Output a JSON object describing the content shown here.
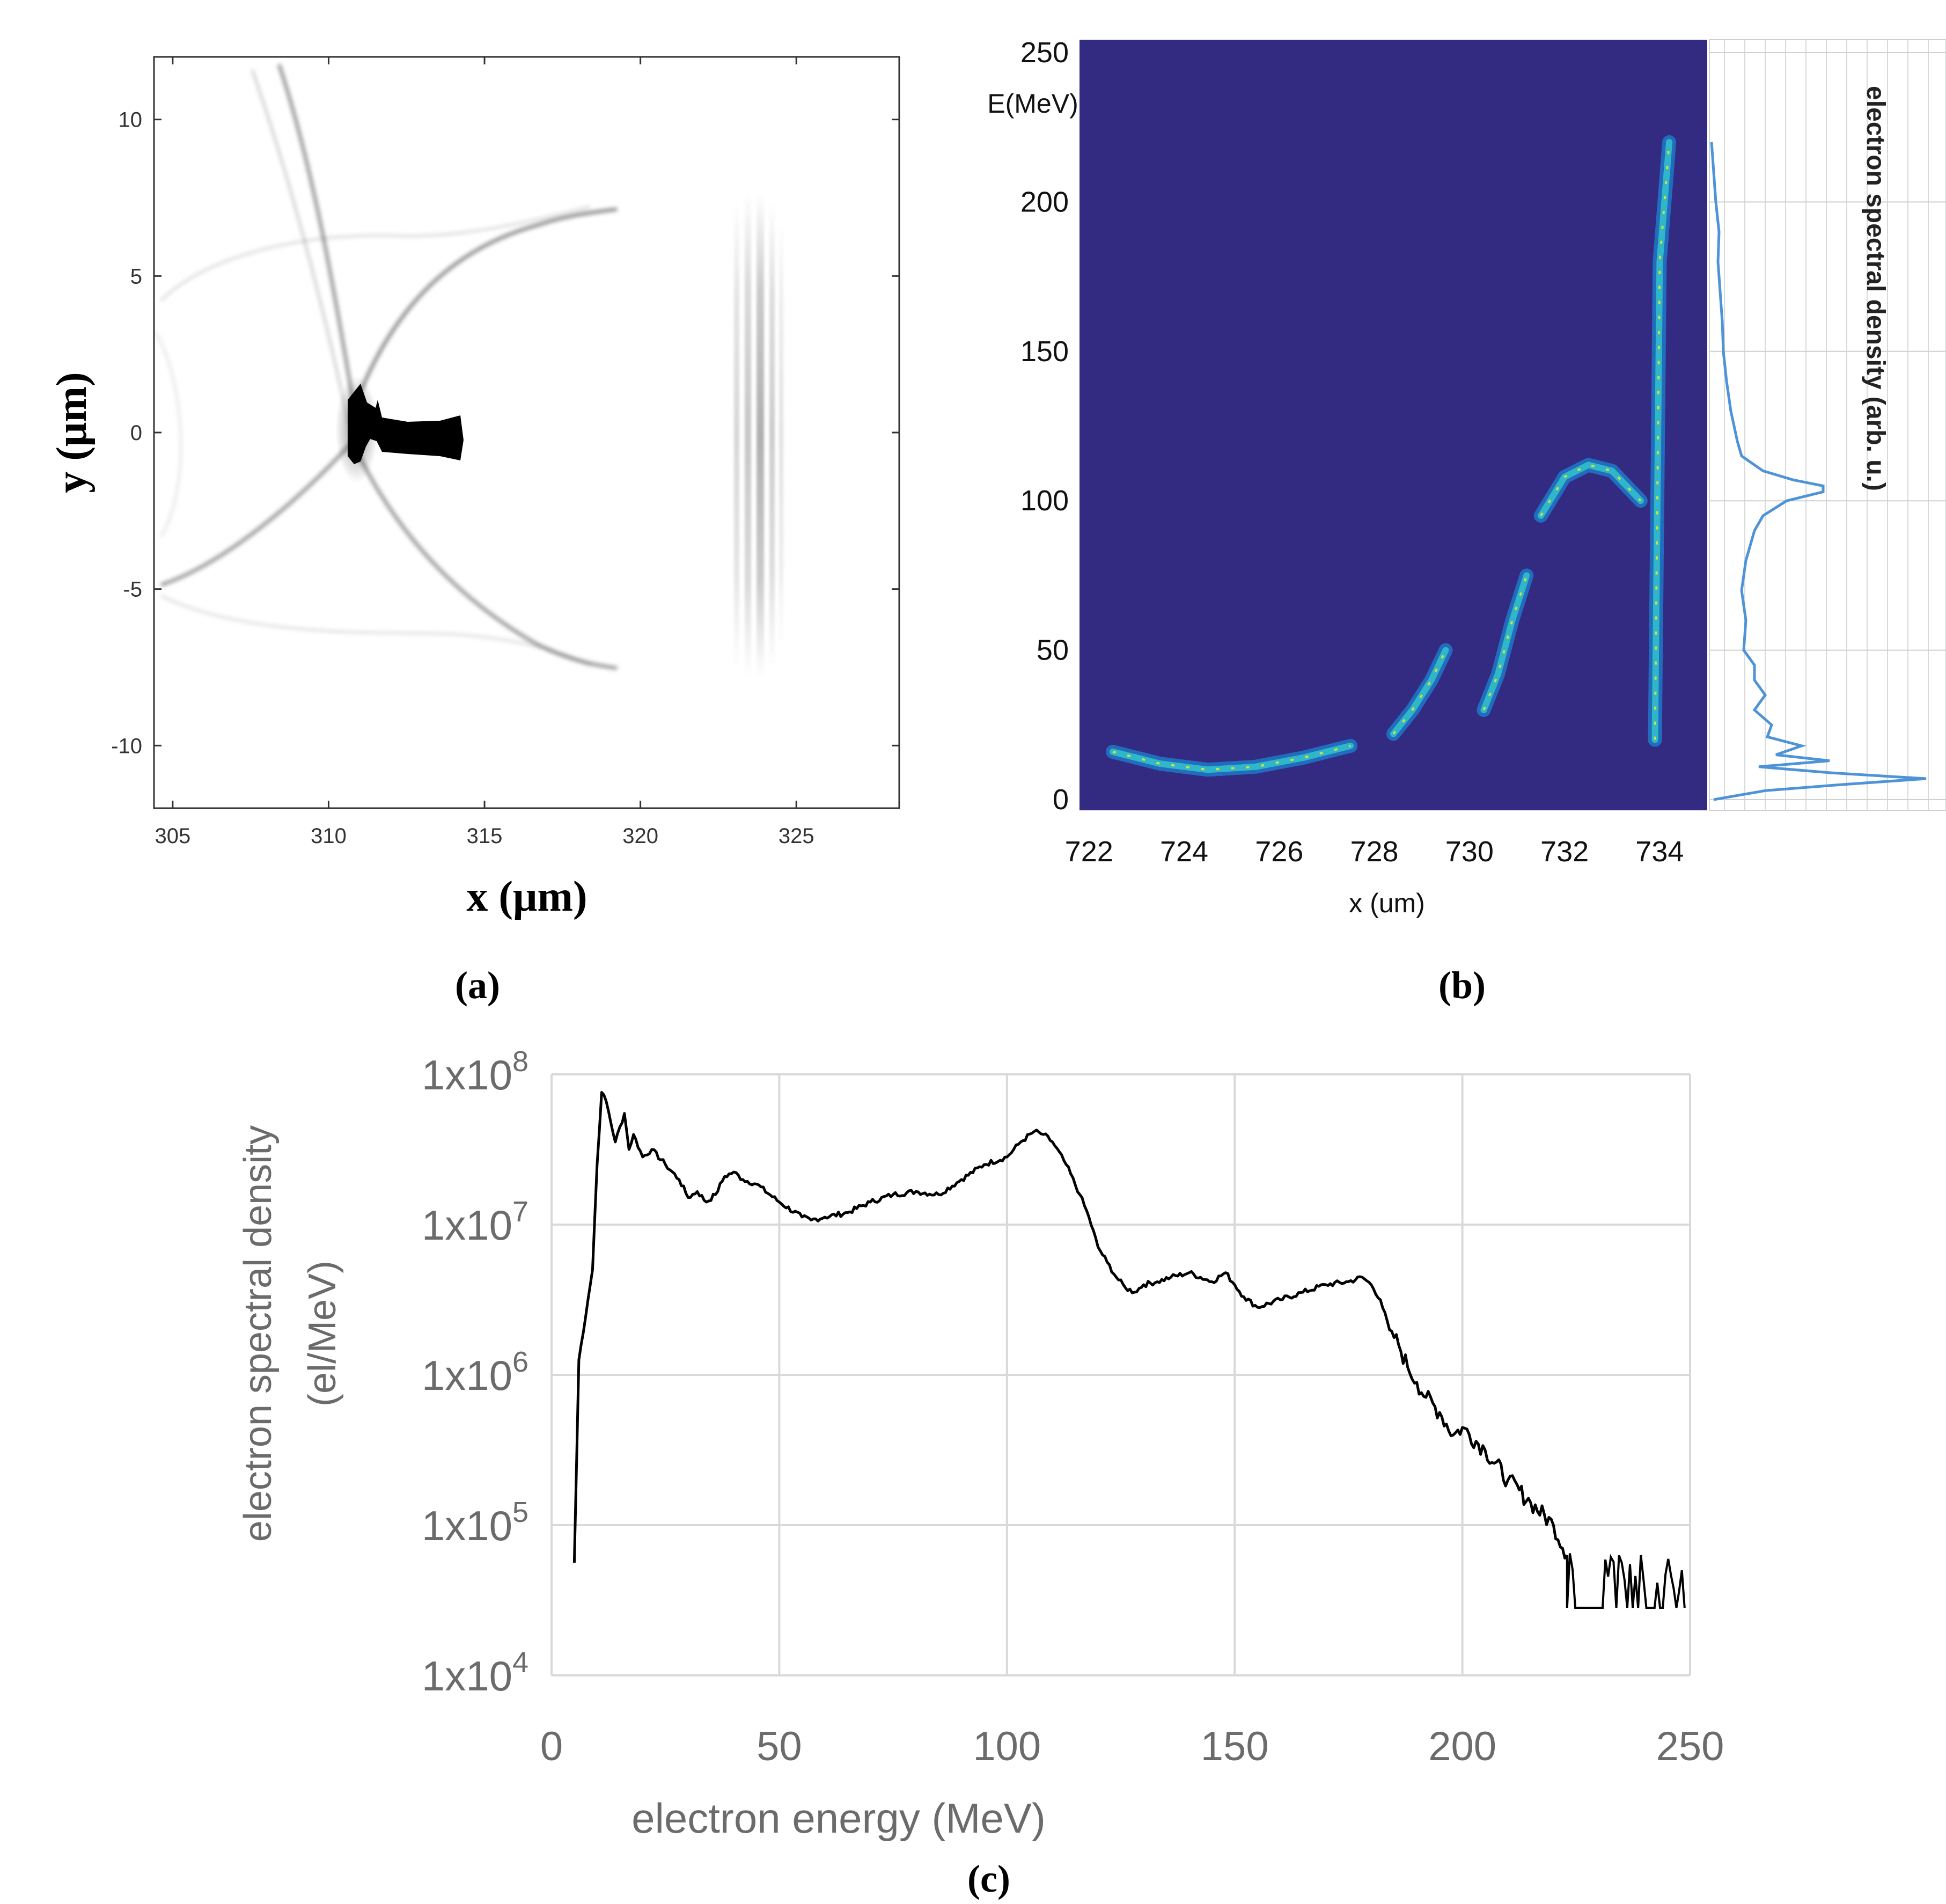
{
  "chart_data": [
    {
      "type": "heatmap",
      "panel_label": "(a)",
      "xlabel": "x (μm)",
      "ylabel": "y (μm)",
      "xlim": [
        304.4,
        328.3
      ],
      "ylim": [
        12,
        -12
      ],
      "x_ticks": [
        "305",
        "310",
        "315",
        "320",
        "325"
      ],
      "y_ticks": [
        "-10",
        "-5",
        "0",
        "5",
        "10"
      ],
      "colormap": "gray_r"
    },
    {
      "type": "heatmap",
      "panel_label": "(b)",
      "ylabel_top": "E(MeV)",
      "xlabel": "x (um)",
      "xlim": [
        721.8,
        735.0
      ],
      "ylim": [
        0,
        250
      ],
      "x_ticks": [
        "722",
        "724",
        "726",
        "728",
        "730",
        "732",
        "734"
      ],
      "y_ticks": [
        "0",
        "50",
        "100",
        "150",
        "200",
        "250"
      ],
      "background": "#332a82",
      "side_plot": {
        "type": "line",
        "label": "electron spectral density (arb. u.)",
        "color": "#4d93d8",
        "energy": [
          0,
          3,
          5,
          7,
          9,
          11,
          13,
          15,
          18,
          21,
          25,
          30,
          35,
          40,
          45,
          50,
          60,
          70,
          80,
          90,
          95,
          100,
          103,
          105,
          107,
          110,
          115,
          120,
          130,
          140,
          150,
          160,
          170,
          180,
          190,
          200,
          210,
          220
        ],
        "density": [
          0.01,
          0.25,
          0.6,
          1.0,
          0.55,
          0.22,
          0.55,
          0.3,
          0.42,
          0.26,
          0.28,
          0.2,
          0.25,
          0.2,
          0.2,
          0.15,
          0.16,
          0.14,
          0.16,
          0.2,
          0.24,
          0.35,
          0.52,
          0.52,
          0.38,
          0.24,
          0.14,
          0.12,
          0.09,
          0.07,
          0.055,
          0.05,
          0.04,
          0.03,
          0.035,
          0.02,
          0.01,
          0.0
        ]
      },
      "streaks": [
        {
          "x": [
            722.5,
            723.5,
            724.5,
            725.5,
            726.5,
            727.5
          ],
          "e": [
            16,
            12,
            10,
            11,
            14,
            18
          ]
        },
        {
          "x": [
            728.4,
            728.8,
            729.2,
            729.5
          ],
          "e": [
            22,
            30,
            40,
            50
          ]
        },
        {
          "x": [
            730.3,
            730.6,
            730.9,
            731.2
          ],
          "e": [
            30,
            42,
            60,
            75
          ]
        },
        {
          "x": [
            731.5,
            732.0,
            732.5,
            733.0,
            733.6
          ],
          "e": [
            95,
            108,
            112,
            110,
            100
          ]
        },
        {
          "x": [
            733.9,
            734.0,
            734.2
          ],
          "e": [
            20,
            180,
            220
          ]
        }
      ]
    },
    {
      "type": "line",
      "panel_label": "(c)",
      "xlabel": "electron energy (MeV)",
      "ylabel": [
        "electron spectral density",
        "(el/MeV)"
      ],
      "xlim": [
        0,
        250
      ],
      "y_scale": "log",
      "ylim_log10": [
        4,
        8
      ],
      "grid": true,
      "x_ticks": [
        "0",
        "50",
        "100",
        "150",
        "200",
        "250"
      ],
      "y_ticks": [
        {
          "base": "1x10",
          "exp": "8"
        },
        {
          "base": "1x10",
          "exp": "7"
        },
        {
          "base": "1x10",
          "exp": "6"
        },
        {
          "base": "1x10",
          "exp": "5"
        },
        {
          "base": "1x10",
          "exp": "4"
        }
      ],
      "x": [
        5,
        6,
        8,
        9,
        10,
        11,
        12,
        14,
        16,
        17,
        18,
        20,
        22,
        25,
        28,
        30,
        32,
        34,
        36,
        38,
        40,
        42,
        45,
        50,
        55,
        57,
        60,
        65,
        70,
        75,
        80,
        85,
        90,
        95,
        100,
        103,
        106,
        108,
        110,
        113,
        116,
        118,
        120,
        122,
        124,
        126,
        128,
        130,
        133,
        136,
        140,
        145,
        148,
        150,
        152,
        155,
        160,
        165,
        170,
        175,
        178,
        180,
        182,
        184,
        186,
        188,
        190,
        192,
        195,
        198,
        200,
        205,
        210,
        215,
        220,
        223
      ],
      "log10_y": [
        4.75,
        6.1,
        6.5,
        6.7,
        7.4,
        7.88,
        7.82,
        7.55,
        7.74,
        7.5,
        7.6,
        7.45,
        7.5,
        7.4,
        7.3,
        7.18,
        7.22,
        7.15,
        7.2,
        7.32,
        7.35,
        7.3,
        7.27,
        7.15,
        7.05,
        7.03,
        7.05,
        7.08,
        7.15,
        7.2,
        7.22,
        7.2,
        7.3,
        7.4,
        7.45,
        7.55,
        7.62,
        7.6,
        7.55,
        7.4,
        7.2,
        7.05,
        6.85,
        6.75,
        6.65,
        6.58,
        6.55,
        6.6,
        6.62,
        6.65,
        6.68,
        6.62,
        6.68,
        6.6,
        6.52,
        6.45,
        6.5,
        6.55,
        6.6,
        6.62,
        6.65,
        6.6,
        6.5,
        6.3,
        6.2,
        6.05,
        5.95,
        5.85,
        5.75,
        5.6,
        5.65,
        5.5,
        5.3,
        5.15,
        5.0,
        4.8
      ],
      "noisy_tail": {
        "x_start": 223,
        "x_end": 249,
        "log10_top": [
          4.95,
          4.75
        ],
        "log10_floor": 4.45
      }
    }
  ]
}
